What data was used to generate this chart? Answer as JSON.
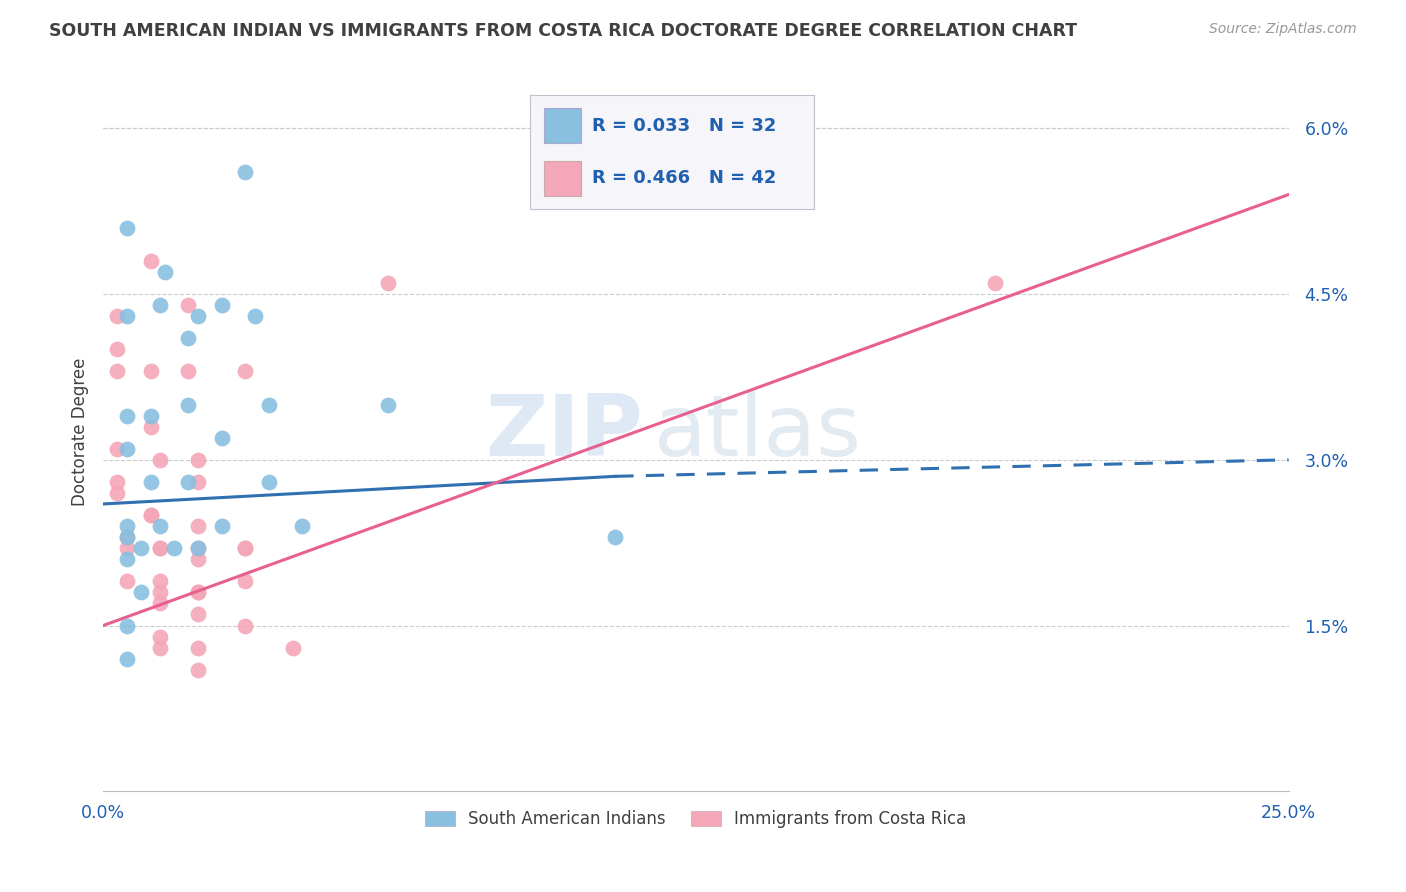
{
  "title": "SOUTH AMERICAN INDIAN VS IMMIGRANTS FROM COSTA RICA DOCTORATE DEGREE CORRELATION CHART",
  "source": "Source: ZipAtlas.com",
  "ylabel": "Doctorate Degree",
  "xlim": [
    0.0,
    0.25
  ],
  "ylim": [
    0.0,
    0.065
  ],
  "yticks": [
    0.015,
    0.03,
    0.045,
    0.06
  ],
  "ytick_labels": [
    "1.5%",
    "3.0%",
    "4.5%",
    "6.0%"
  ],
  "xticks": [
    0.0,
    0.05,
    0.1,
    0.15,
    0.2,
    0.25
  ],
  "xtick_labels": [
    "0.0%",
    "",
    "",
    "",
    "",
    "25.0%"
  ],
  "blue_color": "#89bfdf",
  "pink_color": "#f4a7b8",
  "blue_line_color": "#3070b0",
  "pink_line_color": "#e86090",
  "legend_text_color": "#2060b0",
  "title_color": "#404040",
  "axis_color": "#2060b0",
  "background_color": "#ffffff",
  "watermark_zip": "ZIP",
  "watermark_atlas": "atlas",
  "R_blue": 0.033,
  "N_blue": 32,
  "R_pink": 0.466,
  "N_pink": 42,
  "blue_line_x0": 0.0,
  "blue_line_y0": 0.026,
  "blue_line_x1": 0.108,
  "blue_line_y1": 0.0285,
  "blue_line_dash_x1": 0.25,
  "blue_line_dash_y1": 0.03,
  "pink_line_x0": 0.0,
  "pink_line_y0": 0.015,
  "pink_line_x1": 0.25,
  "pink_line_y1": 0.054,
  "blue_scatter_x": [
    0.005,
    0.013,
    0.02,
    0.03,
    0.005,
    0.012,
    0.018,
    0.025,
    0.032,
    0.005,
    0.01,
    0.018,
    0.025,
    0.035,
    0.06,
    0.005,
    0.01,
    0.018,
    0.035,
    0.108,
    0.005,
    0.012,
    0.02,
    0.005,
    0.008,
    0.015,
    0.025,
    0.042,
    0.005,
    0.008,
    0.005,
    0.005
  ],
  "blue_scatter_y": [
    0.051,
    0.047,
    0.043,
    0.056,
    0.043,
    0.044,
    0.041,
    0.044,
    0.043,
    0.034,
    0.034,
    0.035,
    0.032,
    0.035,
    0.035,
    0.031,
    0.028,
    0.028,
    0.028,
    0.023,
    0.024,
    0.024,
    0.022,
    0.023,
    0.022,
    0.022,
    0.024,
    0.024,
    0.021,
    0.018,
    0.015,
    0.012
  ],
  "pink_scatter_x": [
    0.003,
    0.01,
    0.003,
    0.01,
    0.018,
    0.003,
    0.01,
    0.018,
    0.003,
    0.012,
    0.02,
    0.06,
    0.003,
    0.01,
    0.02,
    0.03,
    0.003,
    0.01,
    0.02,
    0.03,
    0.005,
    0.012,
    0.02,
    0.03,
    0.005,
    0.012,
    0.02,
    0.03,
    0.005,
    0.012,
    0.02,
    0.012,
    0.02,
    0.012,
    0.02,
    0.03,
    0.04,
    0.012,
    0.02,
    0.012,
    0.02,
    0.188
  ],
  "pink_scatter_y": [
    0.043,
    0.048,
    0.04,
    0.038,
    0.044,
    0.038,
    0.033,
    0.038,
    0.031,
    0.03,
    0.03,
    0.046,
    0.027,
    0.025,
    0.028,
    0.038,
    0.028,
    0.025,
    0.024,
    0.022,
    0.023,
    0.022,
    0.022,
    0.022,
    0.022,
    0.022,
    0.021,
    0.019,
    0.019,
    0.019,
    0.018,
    0.018,
    0.018,
    0.017,
    0.016,
    0.015,
    0.013,
    0.014,
    0.013,
    0.013,
    0.011,
    0.046
  ],
  "grid_color": "#cccccc"
}
